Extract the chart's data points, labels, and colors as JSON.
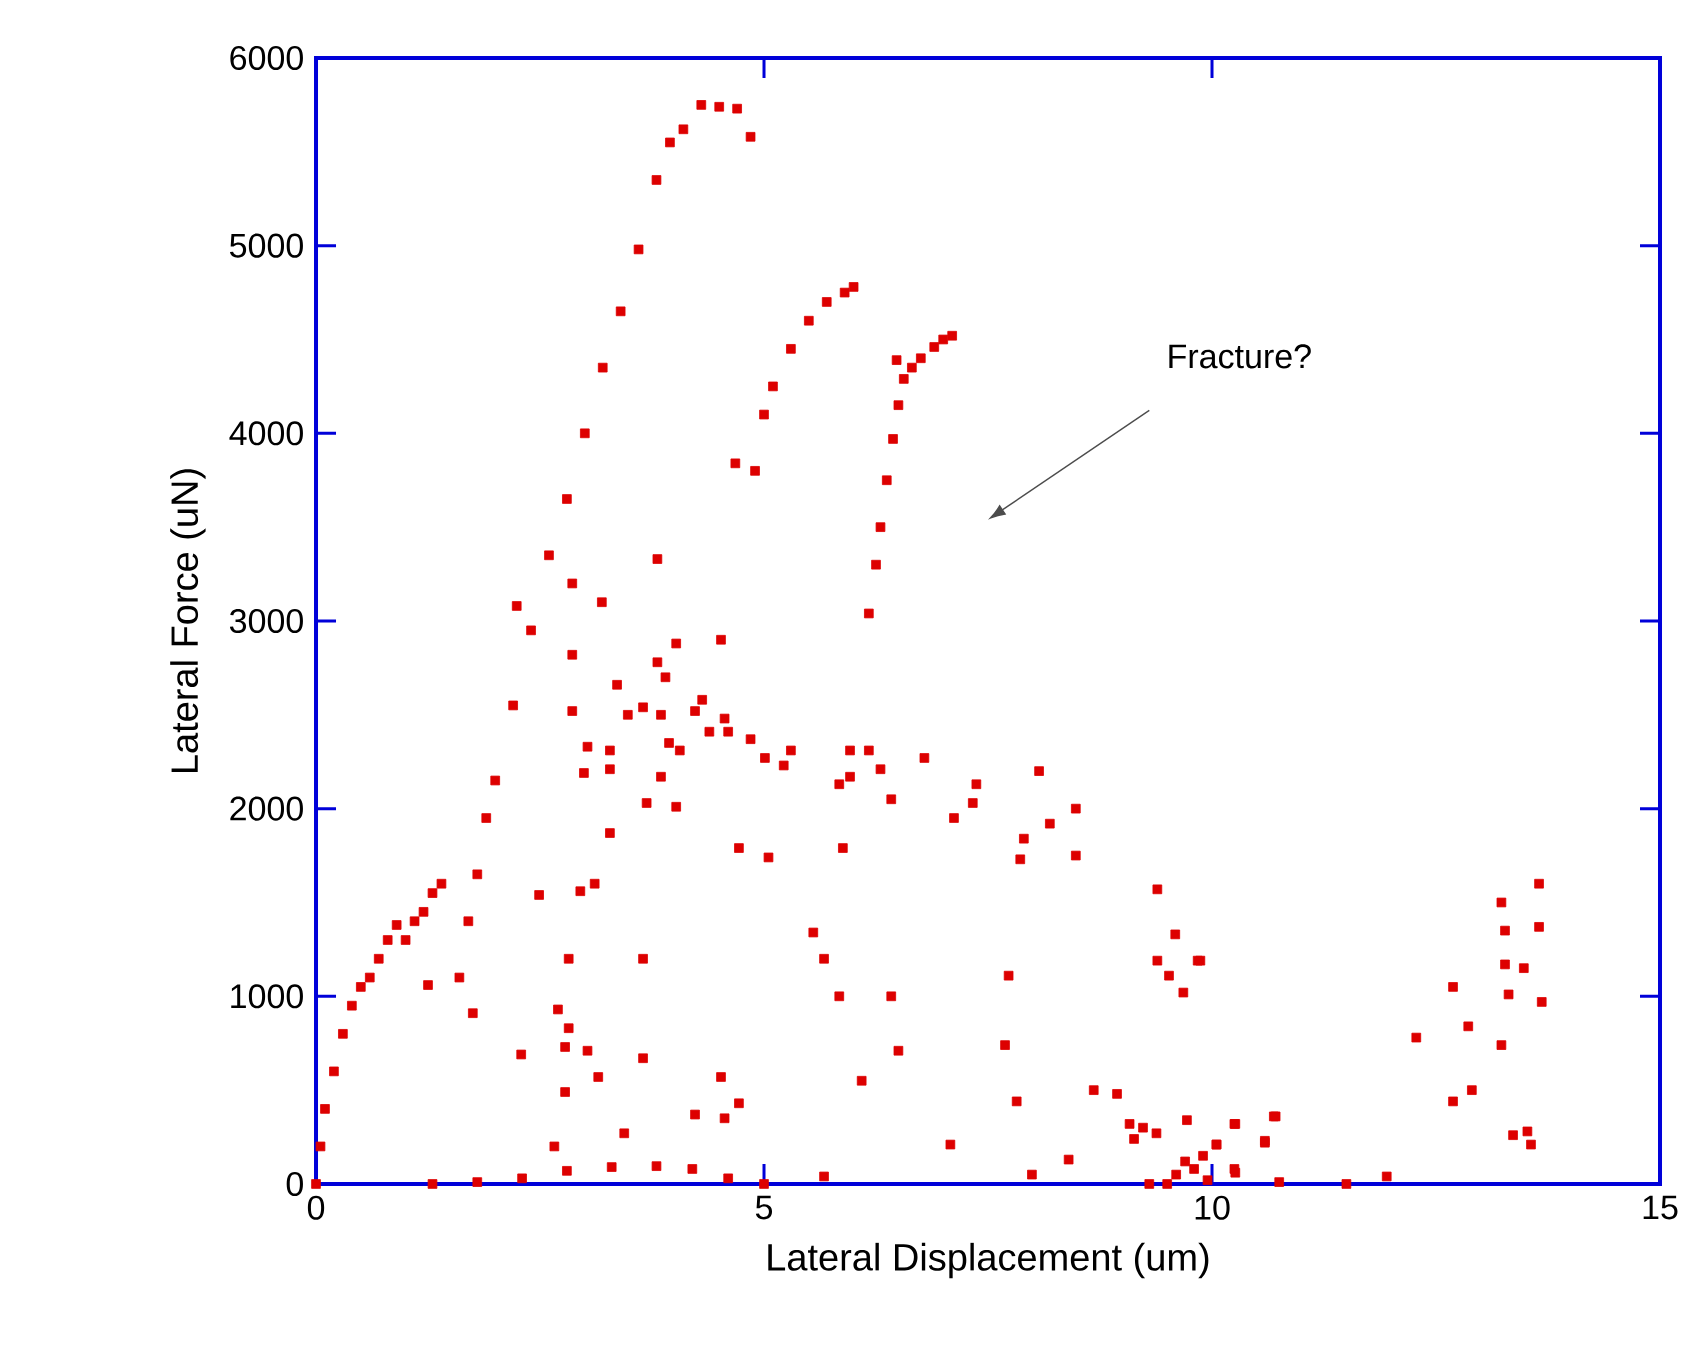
{
  "chart_data": {
    "type": "scatter",
    "xlabel": "Lateral Displacement (um)",
    "ylabel": "Lateral Force (uN)",
    "xlim": [
      0,
      15
    ],
    "ylim": [
      0,
      6000
    ],
    "xticks": [
      0,
      5,
      10,
      15
    ],
    "yticks": [
      0,
      1000,
      2000,
      3000,
      4000,
      5000,
      6000
    ],
    "grid": false,
    "marker": "square",
    "color": "#dd0000",
    "annotations": [
      "Fracture?"
    ],
    "x": [
      0,
      0.05,
      0.1,
      0.2,
      0.3,
      0.4,
      0.5,
      0.6,
      0.7,
      0.8,
      0.9,
      1.0,
      1.1,
      1.2,
      1.3,
      1.4,
      1.6,
      1.7,
      1.8,
      1.9,
      2.0,
      2.2,
      2.4,
      2.6,
      2.8,
      3.0,
      3.2,
      3.4,
      3.6,
      3.8,
      3.95,
      4.1,
      4.3,
      4.5,
      4.7,
      4.85,
      4.9,
      5.0,
      5.1,
      5.3,
      5.5,
      5.7,
      5.9,
      6.0,
      4.68,
      6.17,
      6.25,
      6.3,
      6.37,
      6.44,
      6.5,
      6.56,
      6.65,
      6.75,
      6.9,
      7.0,
      7.1,
      6.48,
      1.3,
      1.8,
      2.3,
      2.8,
      3.3,
      3.8,
      4.2,
      4.6,
      5.0,
      2.24,
      2.86,
      3.19,
      3.81,
      2.86,
      4.02,
      4.52,
      3.36,
      3.81,
      3.9,
      2.86,
      3.48,
      3.65,
      3.85,
      4.31,
      4.23,
      4.56,
      4.39,
      4.6,
      4.85,
      3.03,
      3.28,
      3.94,
      4.06,
      5.01,
      5.22,
      5.3,
      2.99,
      3.28,
      3.85,
      3.69,
      4.02,
      3.28,
      4.72,
      5.05,
      2.49,
      2.95,
      3.11,
      1.25,
      1.75,
      2.82,
      3.65,
      2.7,
      2.82,
      2.78,
      3.03,
      2.29,
      3.65,
      3.15,
      2.78,
      4.52,
      4.72,
      4.56,
      4.23,
      3.44,
      2.66,
      7.08,
      5.67,
      5.55,
      5.67,
      5.84,
      6.42,
      6.5,
      6.09,
      5.84,
      5.96,
      5.88,
      5.96,
      6.17,
      6.3,
      6.42,
      6.79,
      7.12,
      7.33,
      7.37,
      8.07,
      8.19,
      8.48,
      8.48,
      7.9,
      7.86,
      7.73,
      7.69,
      7.82,
      8.4,
      7.99,
      8.68,
      8.94,
      9.08,
      9.23,
      9.13,
      9.38,
      9.39,
      9.59,
      9.39,
      9.52,
      9.84,
      9.68,
      9.72,
      10.05,
      10.25,
      10.59,
      10.69,
      10.25,
      9.6,
      9.7,
      9.8,
      9.9,
      9.95,
      9.5,
      9.3,
      9.87,
      13.65,
      13.23,
      13.27,
      13.65,
      13.27,
      13.48,
      13.31,
      13.68,
      12.69,
      12.86,
      12.28,
      13.23,
      12.69,
      12.9,
      13.36,
      13.52,
      13.56,
      10.26,
      10.71,
      10.05,
      10.59,
      10.26,
      10.75,
      11.5,
      11.95
    ],
    "values": [
      0,
      200,
      400,
      600,
      800,
      950,
      1050,
      1100,
      1200,
      1300,
      1380,
      1300,
      1400,
      1450,
      1550,
      1600,
      1100,
      1400,
      1650,
      1950,
      2150,
      2550,
      2950,
      3350,
      3650,
      4000,
      4350,
      4650,
      4980,
      5350,
      5550,
      5620,
      5750,
      5740,
      5730,
      5580,
      3800,
      4100,
      4250,
      4450,
      4600,
      4700,
      4750,
      4780,
      3840,
      3040,
      3300,
      3500,
      3750,
      3970,
      4150,
      4290,
      4350,
      4400,
      4460,
      4500,
      4520,
      4390,
      0,
      10,
      30,
      70,
      90,
      95,
      80,
      30,
      0,
      3080,
      3200,
      3100,
      3330,
      2820,
      2880,
      2900,
      2660,
      2780,
      2700,
      2520,
      2500,
      2540,
      2500,
      2580,
      2520,
      2480,
      2410,
      2410,
      2370,
      2330,
      2310,
      2350,
      2310,
      2270,
      2230,
      2310,
      2190,
      2210,
      2170,
      2030,
      2010,
      1870,
      1790,
      1740,
      1540,
      1560,
      1600,
      1060,
      910,
      1200,
      1200,
      930,
      830,
      730,
      710,
      690,
      670,
      570,
      490,
      570,
      430,
      350,
      370,
      270,
      200,
      210,
      40,
      1340,
      1200,
      1000,
      1000,
      710,
      550,
      2130,
      2170,
      1790,
      2310,
      2310,
      2210,
      2050,
      2270,
      1950,
      2030,
      2130,
      2200,
      1920,
      2000,
      1750,
      1840,
      1730,
      1110,
      740,
      440,
      130,
      50,
      500,
      480,
      320,
      300,
      240,
      270,
      1570,
      1330,
      1190,
      1110,
      1190,
      1020,
      340,
      210,
      320,
      230,
      360,
      80,
      50,
      120,
      80,
      150,
      20,
      0,
      0,
      1190,
      1600,
      1500,
      1350,
      1370,
      1170,
      1150,
      1010,
      970,
      1050,
      840,
      780,
      740,
      440,
      500,
      260,
      280,
      210,
      320,
      360,
      210,
      220,
      60,
      10,
      0,
      40
    ]
  }
}
